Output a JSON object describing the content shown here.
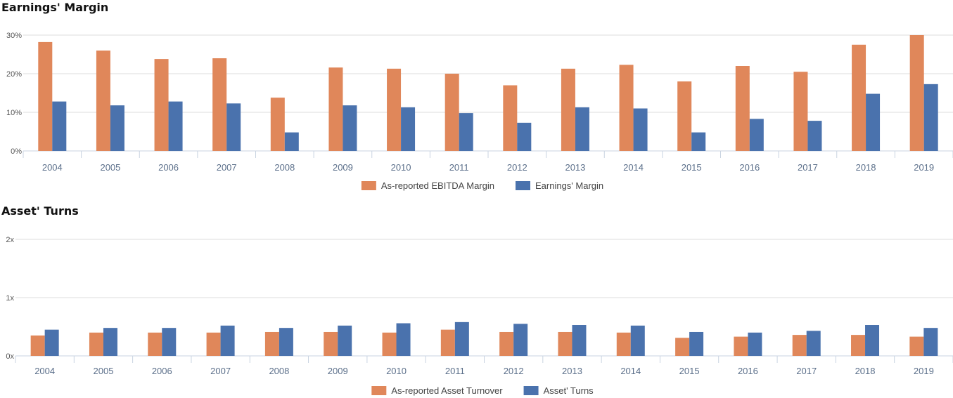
{
  "charts": [
    {
      "id": "earnings",
      "title": "Earnings' Margin",
      "type": "bar",
      "categories": [
        "2004",
        "2005",
        "2006",
        "2007",
        "2008",
        "2009",
        "2010",
        "2011",
        "2012",
        "2013",
        "2014",
        "2015",
        "2016",
        "2017",
        "2018",
        "2019"
      ],
      "yticks": [
        "0%",
        "10%",
        "20%",
        "30%"
      ],
      "ylim": [
        0,
        30
      ],
      "grid": true,
      "legend_position": "bottom-center",
      "series": [
        {
          "name": "As-reported EBITDA Margin",
          "color": "#e0875a",
          "values": [
            28.2,
            26.0,
            23.8,
            24.0,
            13.8,
            21.6,
            21.3,
            20.0,
            17.0,
            21.3,
            22.3,
            18.0,
            22.0,
            20.5,
            27.5,
            30.0
          ]
        },
        {
          "name": "Earnings' Margin",
          "color": "#4a72ad",
          "values": [
            12.8,
            11.8,
            12.8,
            12.3,
            4.8,
            11.8,
            11.3,
            9.8,
            7.3,
            11.3,
            11.0,
            4.8,
            8.3,
            7.8,
            14.8,
            17.3
          ]
        }
      ]
    },
    {
      "id": "turns",
      "title": "Asset' Turns",
      "type": "bar",
      "categories": [
        "2004",
        "2005",
        "2006",
        "2007",
        "2008",
        "2009",
        "2010",
        "2011",
        "2012",
        "2013",
        "2014",
        "2015",
        "2016",
        "2017",
        "2018",
        "2019"
      ],
      "yticks": [
        "0x",
        "1x",
        "2x"
      ],
      "ylim": [
        0,
        2
      ],
      "grid": true,
      "legend_position": "bottom-center",
      "series": [
        {
          "name": "As-reported Asset Turnover",
          "color": "#e0875a",
          "values": [
            0.35,
            0.4,
            0.4,
            0.4,
            0.41,
            0.41,
            0.4,
            0.45,
            0.41,
            0.41,
            0.4,
            0.31,
            0.33,
            0.36,
            0.36,
            0.33
          ]
        },
        {
          "name": "Asset' Turns",
          "color": "#4a72ad",
          "values": [
            0.45,
            0.48,
            0.48,
            0.52,
            0.48,
            0.52,
            0.56,
            0.58,
            0.55,
            0.53,
            0.52,
            0.41,
            0.4,
            0.43,
            0.53,
            0.48
          ]
        }
      ]
    }
  ]
}
